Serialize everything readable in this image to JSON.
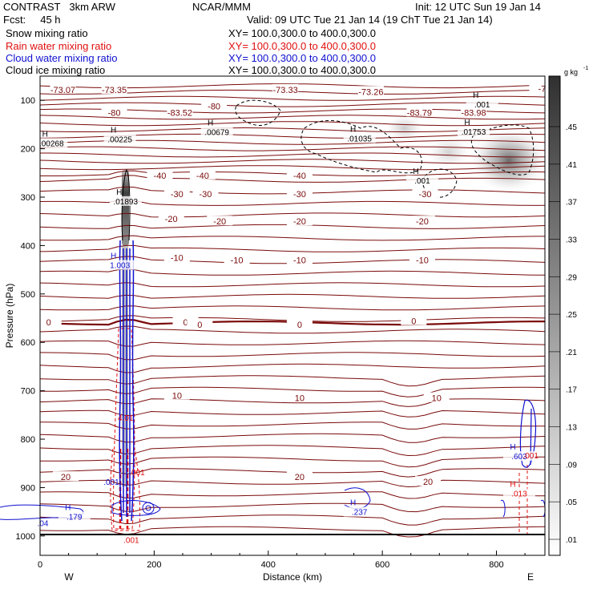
{
  "header": {
    "model": "CONTRAST",
    "run": "3km ARW",
    "fcst_label": "Fcst:",
    "fcst_hours": "45 h",
    "center": "NCAR/MMM",
    "init": "Init: 12 UTC Sun 19 Jan 14",
    "valid": "Valid: 09 UTC Tue 21 Jan 14 (19 ChT Tue 21 Jan 14)"
  },
  "fields": [
    {
      "name": "Snow mixing ratio",
      "xy": "XY= 100.0,300.0 to 400.0,300.0",
      "color": "#000000"
    },
    {
      "name": "Rain water mixing ratio",
      "xy": "XY= 100.0,300.0 to 400.0,300.0",
      "color": "#e01010"
    },
    {
      "name": "Cloud water mixing ratio",
      "xy": "XY= 100.0,300.0 to 400.0,300.0",
      "color": "#1010d0"
    },
    {
      "name": "Cloud ice mixing ratio",
      "xy": "XY= 100.0,300.0 to 400.0,300.0",
      "color": "#000000"
    }
  ],
  "chart_data": {
    "type": "contour",
    "xlabel": "Distance (km)",
    "ylabel": "Pressure (hPa)",
    "xlim": [
      0,
      885
    ],
    "ylim": [
      1040,
      50
    ],
    "x_ticks": [
      0,
      200,
      400,
      600,
      800
    ],
    "y_ticks": [
      100,
      200,
      300,
      400,
      500,
      600,
      700,
      800,
      900,
      1000
    ],
    "x_end_labels": {
      "left": "W",
      "right": "E"
    },
    "colorbar": {
      "unit": "g kg",
      "unit_exp": "-1",
      "ticks": [
        ".01",
        ".05",
        ".09",
        ".13",
        ".17",
        ".21",
        ".25",
        ".29",
        ".33",
        ".37",
        ".41",
        ".45"
      ]
    },
    "temperature_levels": [
      {
        "value": "-80",
        "p": 125
      },
      {
        "value": "-40",
        "p": 250
      },
      {
        "value": "-30",
        "p": 290
      },
      {
        "value": "-20",
        "p": 345
      },
      {
        "value": "-10",
        "p": 425
      },
      {
        "value": "0",
        "p": 560
      },
      {
        "value": "10",
        "p": 715
      },
      {
        "value": "20",
        "p": 882
      }
    ],
    "temperature_labels": [
      {
        "text": "-73.07",
        "x": 40,
        "p": 78
      },
      {
        "text": "-73.35",
        "x": 130,
        "p": 78
      },
      {
        "text": "-73.33",
        "x": 430,
        "p": 78
      },
      {
        "text": "-73.26",
        "x": 580,
        "p": 82
      },
      {
        "text": "-7",
        "x": 880,
        "p": 76
      },
      {
        "text": "-80",
        "x": 130,
        "p": 125
      },
      {
        "text": "-80",
        "x": 305,
        "p": 112
      },
      {
        "text": "-83.52",
        "x": 245,
        "p": 125
      },
      {
        "text": "-83.79",
        "x": 665,
        "p": 125
      },
      {
        "text": "-83.98",
        "x": 760,
        "p": 125
      },
      {
        "text": "-40",
        "x": 210,
        "p": 255
      },
      {
        "text": "-40",
        "x": 285,
        "p": 255
      },
      {
        "text": "-40",
        "x": 455,
        "p": 255
      },
      {
        "text": "-30",
        "x": 240,
        "p": 293
      },
      {
        "text": "-30",
        "x": 290,
        "p": 293
      },
      {
        "text": "-30",
        "x": 455,
        "p": 293
      },
      {
        "text": "-30",
        "x": 675,
        "p": 293
      },
      {
        "text": "-20",
        "x": 230,
        "p": 345
      },
      {
        "text": "-20",
        "x": 315,
        "p": 350
      },
      {
        "text": "-20",
        "x": 455,
        "p": 350
      },
      {
        "text": "-20",
        "x": 670,
        "p": 350
      },
      {
        "text": "-10",
        "x": 240,
        "p": 425
      },
      {
        "text": "-10",
        "x": 345,
        "p": 430
      },
      {
        "text": "-10",
        "x": 455,
        "p": 430
      },
      {
        "text": "-10",
        "x": 670,
        "p": 430
      },
      {
        "text": "0",
        "x": 15,
        "p": 558
      },
      {
        "text": "0",
        "x": 255,
        "p": 558
      },
      {
        "text": "0",
        "x": 280,
        "p": 563
      },
      {
        "text": "0",
        "x": 455,
        "p": 563
      },
      {
        "text": "0",
        "x": 655,
        "p": 556
      },
      {
        "text": "10",
        "x": 240,
        "p": 710
      },
      {
        "text": "10",
        "x": 455,
        "p": 715
      },
      {
        "text": "10",
        "x": 695,
        "p": 715
      },
      {
        "text": "20",
        "x": 45,
        "p": 878
      },
      {
        "text": "20",
        "x": 455,
        "p": 878
      },
      {
        "text": "20",
        "x": 680,
        "p": 888
      }
    ],
    "highs": [
      {
        "text": ".00268",
        "x": 20,
        "p": 188,
        "color": "#000000"
      },
      {
        "text": ".00225",
        "x": 140,
        "p": 180,
        "color": "#000000"
      },
      {
        "text": ".00679",
        "x": 310,
        "p": 165,
        "color": "#000000"
      },
      {
        "text": ".01035",
        "x": 560,
        "p": 178,
        "color": "#000000"
      },
      {
        "text": ".01753",
        "x": 760,
        "p": 164,
        "color": "#000000"
      },
      {
        "text": ".001",
        "x": 670,
        "p": 265,
        "color": "#000000"
      },
      {
        "text": ".001",
        "x": 775,
        "p": 108,
        "color": "#000000"
      },
      {
        "text": ".01893",
        "x": 150,
        "p": 308,
        "color": "#000000"
      },
      {
        "text": "1.003",
        "x": 140,
        "p": 440,
        "color": "#1010d0"
      },
      {
        "text": ".179",
        "x": 60,
        "p": 960,
        "color": "#1010d0"
      },
      {
        "text": ".237",
        "x": 560,
        "p": 950,
        "color": "#1010d0"
      },
      {
        "text": ".603",
        "x": 840,
        "p": 835,
        "color": "#1010d0"
      },
      {
        "text": ".013",
        "x": 840,
        "p": 912,
        "color": "#e01010"
      }
    ],
    "minor_labels": [
      {
        "text": ".001",
        "x": 125,
        "p": 888,
        "color": "#1010d0"
      },
      {
        "text": ".001",
        "x": 170,
        "p": 868,
        "color": "#e01010"
      },
      {
        "text": ".001",
        "x": 160,
        "p": 1008,
        "color": "#e01010"
      },
      {
        "text": ".001",
        "x": 860,
        "p": 833,
        "color": "#e01010"
      },
      {
        "text": "4.01",
        "x": 150,
        "p": 755,
        "color": "#e01010"
      },
      {
        "text": ".04",
        "x": 5,
        "p": 973,
        "color": "#1010d0"
      }
    ]
  }
}
